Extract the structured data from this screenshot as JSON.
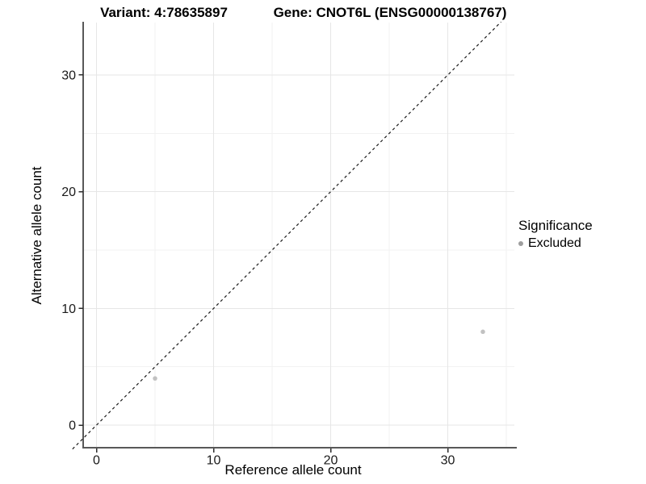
{
  "chart_data": {
    "type": "scatter",
    "titles": {
      "left": "Variant: 4:78635897",
      "right": "Gene: CNOT6L (ENSG00000138767)"
    },
    "xlabel": "Reference allele count",
    "ylabel": "Alternative allele count",
    "x_ticks": [
      0,
      10,
      20,
      30
    ],
    "y_ticks": [
      0,
      10,
      20,
      30
    ],
    "x_minor_ticks": [
      5,
      15,
      25,
      35
    ],
    "y_minor_ticks": [
      5,
      15,
      25
    ],
    "xlim": [
      -1.1,
      35.7
    ],
    "ylim": [
      -1.9,
      34.4
    ],
    "grid": "major+minor",
    "aspect": "equal",
    "series": [
      {
        "name": "Excluded",
        "color": "#c1c1c1",
        "points": [
          {
            "x": 5,
            "y": 4
          },
          {
            "x": 33,
            "y": 8
          }
        ]
      }
    ],
    "reference_line": {
      "type": "abline",
      "slope": 1,
      "intercept": 0,
      "linetype": "dashed",
      "color": "#1a1a1a"
    },
    "legend": {
      "title": "Significance",
      "position": "right",
      "entries": [
        {
          "label": "Excluded",
          "color": "#9e9e9e"
        }
      ]
    },
    "colors": {
      "background": "#ffffff",
      "axis_line": "#585858",
      "tick_mark": "#2b2b2b",
      "tick_label": "#1a1a1a",
      "grid_major": "#e6e6e6",
      "grid_minor": "#f2f2f2"
    }
  }
}
